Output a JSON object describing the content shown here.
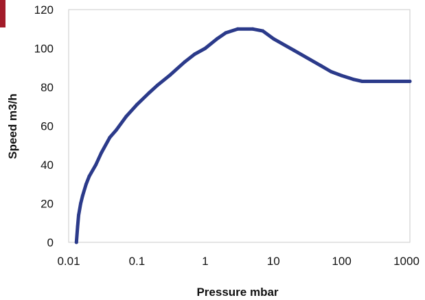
{
  "chart_data": {
    "type": "line",
    "xlabel": "Pressure mbar",
    "ylabel": "Speed m3/h",
    "x_scale": "log",
    "xlim": [
      0.01,
      1000
    ],
    "ylim": [
      0,
      120
    ],
    "x_ticks": [
      0.01,
      0.1,
      1,
      10,
      100,
      1000
    ],
    "x_tick_labels": [
      "0.01",
      "0.1",
      "1",
      "10",
      "100",
      "1000"
    ],
    "y_ticks": [
      0,
      20,
      40,
      60,
      80,
      100,
      120
    ],
    "y_tick_labels": [
      "0",
      "20",
      "40",
      "60",
      "80",
      "100",
      "120"
    ],
    "grid": false,
    "legend": "none",
    "series": [
      {
        "color": "#2b3a8a",
        "points": [
          [
            0.013,
            0
          ],
          [
            0.0135,
            8
          ],
          [
            0.014,
            14
          ],
          [
            0.015,
            20
          ],
          [
            0.016,
            24
          ],
          [
            0.018,
            30
          ],
          [
            0.02,
            34
          ],
          [
            0.025,
            40
          ],
          [
            0.03,
            46
          ],
          [
            0.04,
            54
          ],
          [
            0.05,
            58
          ],
          [
            0.07,
            65
          ],
          [
            0.1,
            71
          ],
          [
            0.15,
            77
          ],
          [
            0.2,
            81
          ],
          [
            0.3,
            86
          ],
          [
            0.5,
            93
          ],
          [
            0.7,
            97
          ],
          [
            1,
            100
          ],
          [
            1.5,
            105
          ],
          [
            2,
            108
          ],
          [
            3,
            110
          ],
          [
            5,
            110
          ],
          [
            7,
            109
          ],
          [
            10,
            105
          ],
          [
            20,
            99
          ],
          [
            50,
            91
          ],
          [
            70,
            88
          ],
          [
            100,
            86
          ],
          [
            150,
            84
          ],
          [
            200,
            83
          ],
          [
            300,
            83
          ],
          [
            500,
            83
          ],
          [
            1000,
            83
          ]
        ]
      }
    ]
  }
}
